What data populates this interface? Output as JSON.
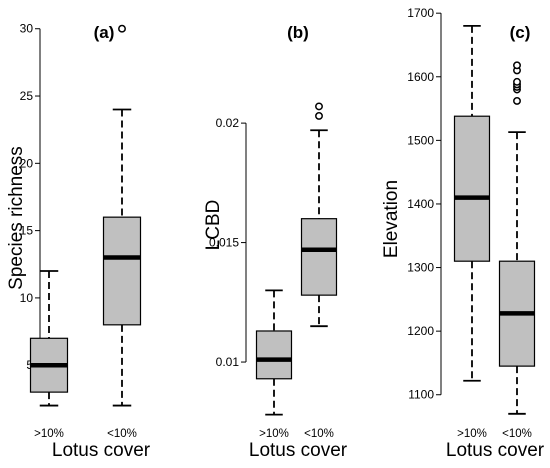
{
  "chart_data": [
    {
      "type": "box",
      "panel_label": "(a)",
      "ylabel": "Species richness",
      "xlabel": "Lotus cover",
      "categories": [
        ">10%",
        "<10%"
      ],
      "yticks": [
        5,
        10,
        15,
        20,
        25,
        30
      ],
      "ytick_labels": [
        "5",
        "10",
        "15",
        "20",
        "25",
        "30"
      ],
      "ylim": [
        1.3,
        30.5
      ],
      "boxes": [
        {
          "category": ">10%",
          "whisker_low": 2,
          "q1": 3,
          "median": 5,
          "q3": 7,
          "whisker_high": 12,
          "outliers": []
        },
        {
          "category": "<10%",
          "whisker_low": 2,
          "q1": 8,
          "median": 13,
          "q3": 16,
          "whisker_high": 24,
          "outliers": [
            30
          ]
        }
      ]
    },
    {
      "type": "box",
      "panel_label": "(b)",
      "ylabel": "LCBD",
      "xlabel": "Lotus cover",
      "categories": [
        ">10%",
        "<10%"
      ],
      "yticks": [
        0.01,
        0.015,
        0.02
      ],
      "ytick_labels": [
        "0.01",
        "0.015",
        "0.02"
      ],
      "ylim": [
        0.0077,
        0.0208
      ],
      "boxes": [
        {
          "category": ">10%",
          "whisker_low": 0.0078,
          "q1": 0.0093,
          "median": 0.0101,
          "q3": 0.0113,
          "whisker_high": 0.013,
          "outliers": []
        },
        {
          "category": "<10%",
          "whisker_low": 0.0115,
          "q1": 0.0128,
          "median": 0.0147,
          "q3": 0.016,
          "whisker_high": 0.0197,
          "outliers": [
            0.0203,
            0.0207
          ]
        }
      ]
    },
    {
      "type": "box",
      "panel_label": "(c)",
      "ylabel": "Elevation",
      "xlabel": "Lotus cover",
      "categories": [
        ">10%",
        "<10%"
      ],
      "yticks": [
        1100,
        1200,
        1300,
        1400,
        1500,
        1600,
        1700
      ],
      "ytick_labels": [
        "1100",
        "1200",
        "1300",
        "1400",
        "1500",
        "1600",
        "1700"
      ],
      "ylim": [
        1065,
        1705
      ],
      "boxes": [
        {
          "category": ">10%",
          "whisker_low": 1122,
          "q1": 1310,
          "median": 1410,
          "q3": 1538,
          "whisker_high": 1680,
          "outliers": []
        },
        {
          "category": "<10%",
          "whisker_low": 1070,
          "q1": 1145,
          "median": 1228,
          "q3": 1310,
          "whisker_high": 1513,
          "outliers": [
            1562,
            1580,
            1584,
            1588,
            1592,
            1610,
            1618
          ]
        }
      ]
    }
  ],
  "style": {
    "box_fill": "#c0c0c0",
    "line_color": "#000000",
    "background": "#ffffff"
  }
}
